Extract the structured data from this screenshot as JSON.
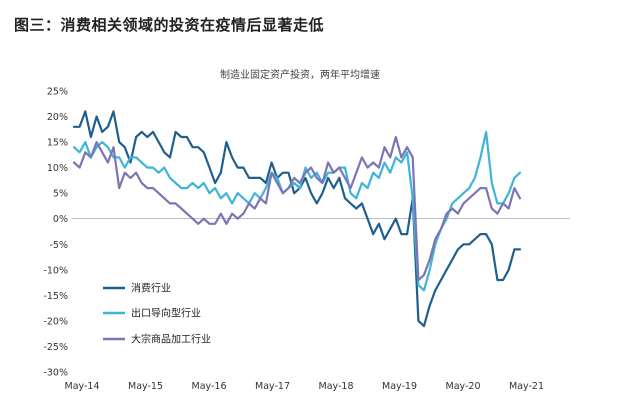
{
  "figure_title": "图三：消费相关领域的投资在疫情后显著走低",
  "chart_data": {
    "type": "line",
    "title": "制造业固定资产投资，两年平均增速",
    "xlabel": "",
    "ylabel": "",
    "ylim": [
      -30,
      25
    ],
    "yticks": [
      "25%",
      "20%",
      "15%",
      "10%",
      "5%",
      "0%",
      "-5%",
      "-10%",
      "-15%",
      "-20%",
      "-25%",
      "-30%"
    ],
    "xticks": [
      "May-14",
      "May-15",
      "May-16",
      "May-17",
      "May-18",
      "May-19",
      "May-20",
      "May-21"
    ],
    "legend_position": "bottom-left",
    "grid": false,
    "series": [
      {
        "name": "消费行业",
        "color": "#1f5f8f",
        "values": [
          [
            0,
            18
          ],
          [
            1,
            18
          ],
          [
            2,
            21
          ],
          [
            3,
            16
          ],
          [
            4,
            20
          ],
          [
            5,
            17
          ],
          [
            6,
            18
          ],
          [
            7,
            21
          ],
          [
            8,
            15
          ],
          [
            9,
            14
          ],
          [
            10,
            11
          ],
          [
            11,
            16
          ],
          [
            12,
            17
          ],
          [
            13,
            16
          ],
          [
            14,
            17
          ],
          [
            15,
            15
          ],
          [
            16,
            13
          ],
          [
            17,
            12
          ],
          [
            18,
            17
          ],
          [
            19,
            16
          ],
          [
            20,
            16
          ],
          [
            21,
            14
          ],
          [
            22,
            14
          ],
          [
            23,
            13
          ],
          [
            24,
            10
          ],
          [
            25,
            7
          ],
          [
            26,
            9
          ],
          [
            27,
            15
          ],
          [
            28,
            12
          ],
          [
            29,
            10
          ],
          [
            30,
            10
          ],
          [
            31,
            8
          ],
          [
            32,
            8
          ],
          [
            33,
            8
          ],
          [
            34,
            7
          ],
          [
            35,
            11
          ],
          [
            36,
            8
          ],
          [
            37,
            9
          ],
          [
            38,
            9
          ],
          [
            39,
            5
          ],
          [
            40,
            6
          ],
          [
            41,
            8
          ],
          [
            42,
            5
          ],
          [
            43,
            3
          ],
          [
            44,
            5
          ],
          [
            45,
            8
          ],
          [
            46,
            6
          ],
          [
            47,
            8
          ],
          [
            48,
            4
          ],
          [
            49,
            3
          ],
          [
            50,
            2
          ],
          [
            51,
            3
          ],
          [
            52,
            0
          ],
          [
            53,
            -3
          ],
          [
            54,
            -1
          ],
          [
            55,
            -4
          ],
          [
            56,
            -2
          ],
          [
            57,
            0
          ],
          [
            58,
            -3
          ],
          [
            59,
            -3
          ],
          [
            60,
            4
          ],
          [
            61,
            -20
          ],
          [
            62,
            -21
          ],
          [
            63,
            -17
          ],
          [
            64,
            -14
          ],
          [
            65,
            -12
          ],
          [
            66,
            -10
          ],
          [
            67,
            -8
          ],
          [
            68,
            -6
          ],
          [
            69,
            -5
          ],
          [
            70,
            -5
          ],
          [
            71,
            -4
          ],
          [
            72,
            -3
          ],
          [
            73,
            -3
          ],
          [
            74,
            -5
          ],
          [
            75,
            -12
          ],
          [
            76,
            -12
          ],
          [
            77,
            -10
          ],
          [
            78,
            -6
          ],
          [
            79,
            -6
          ]
        ]
      },
      {
        "name": "出口导向型行业",
        "color": "#3fb4d6",
        "values": [
          [
            0,
            14
          ],
          [
            1,
            13
          ],
          [
            2,
            15
          ],
          [
            3,
            12
          ],
          [
            4,
            14
          ],
          [
            5,
            15
          ],
          [
            6,
            14
          ],
          [
            7,
            12
          ],
          [
            8,
            12
          ],
          [
            9,
            10
          ],
          [
            10,
            12
          ],
          [
            11,
            12
          ],
          [
            12,
            11
          ],
          [
            13,
            10
          ],
          [
            14,
            10
          ],
          [
            15,
            9
          ],
          [
            16,
            10
          ],
          [
            17,
            8
          ],
          [
            18,
            7
          ],
          [
            19,
            6
          ],
          [
            20,
            6
          ],
          [
            21,
            7
          ],
          [
            22,
            6
          ],
          [
            23,
            7
          ],
          [
            24,
            5
          ],
          [
            25,
            6
          ],
          [
            26,
            4
          ],
          [
            27,
            5
          ],
          [
            28,
            3
          ],
          [
            29,
            5
          ],
          [
            30,
            4
          ],
          [
            31,
            3
          ],
          [
            32,
            5
          ],
          [
            33,
            4
          ],
          [
            34,
            6
          ],
          [
            35,
            9
          ],
          [
            36,
            8
          ],
          [
            37,
            5
          ],
          [
            38,
            6
          ],
          [
            39,
            7
          ],
          [
            40,
            6
          ],
          [
            41,
            10
          ],
          [
            42,
            8
          ],
          [
            43,
            9
          ],
          [
            44,
            7
          ],
          [
            45,
            9
          ],
          [
            46,
            9
          ],
          [
            47,
            10
          ],
          [
            48,
            10
          ],
          [
            49,
            5
          ],
          [
            50,
            4
          ],
          [
            51,
            7
          ],
          [
            52,
            6
          ],
          [
            53,
            9
          ],
          [
            54,
            8
          ],
          [
            55,
            11
          ],
          [
            56,
            9
          ],
          [
            57,
            12
          ],
          [
            58,
            11
          ],
          [
            59,
            13
          ],
          [
            60,
            4
          ],
          [
            61,
            -13
          ],
          [
            62,
            -14
          ],
          [
            63,
            -10
          ],
          [
            64,
            -5
          ],
          [
            65,
            -2
          ],
          [
            66,
            0
          ],
          [
            67,
            3
          ],
          [
            68,
            4
          ],
          [
            69,
            5
          ],
          [
            70,
            6
          ],
          [
            71,
            8
          ],
          [
            72,
            12
          ],
          [
            73,
            17
          ],
          [
            74,
            7
          ],
          [
            75,
            3
          ],
          [
            76,
            3
          ],
          [
            77,
            5
          ],
          [
            78,
            8
          ],
          [
            79,
            9
          ]
        ]
      },
      {
        "name": "大宗商品加工行业",
        "color": "#7c74b4",
        "values": [
          [
            0,
            11
          ],
          [
            1,
            10
          ],
          [
            2,
            13
          ],
          [
            3,
            12
          ],
          [
            4,
            15
          ],
          [
            5,
            13
          ],
          [
            6,
            11
          ],
          [
            7,
            14
          ],
          [
            8,
            6
          ],
          [
            9,
            9
          ],
          [
            10,
            8
          ],
          [
            11,
            9
          ],
          [
            12,
            7
          ],
          [
            13,
            6
          ],
          [
            14,
            6
          ],
          [
            15,
            5
          ],
          [
            16,
            4
          ],
          [
            17,
            3
          ],
          [
            18,
            3
          ],
          [
            19,
            2
          ],
          [
            20,
            1
          ],
          [
            21,
            0
          ],
          [
            22,
            -1
          ],
          [
            23,
            0
          ],
          [
            24,
            -1
          ],
          [
            25,
            -1
          ],
          [
            26,
            1
          ],
          [
            27,
            -1
          ],
          [
            28,
            1
          ],
          [
            29,
            0
          ],
          [
            30,
            1
          ],
          [
            31,
            3
          ],
          [
            32,
            2
          ],
          [
            33,
            4
          ],
          [
            34,
            3
          ],
          [
            35,
            9
          ],
          [
            36,
            7
          ],
          [
            37,
            5
          ],
          [
            38,
            6
          ],
          [
            39,
            8
          ],
          [
            40,
            7
          ],
          [
            41,
            9
          ],
          [
            42,
            10
          ],
          [
            43,
            8
          ],
          [
            44,
            7
          ],
          [
            45,
            11
          ],
          [
            46,
            9
          ],
          [
            47,
            10
          ],
          [
            48,
            8
          ],
          [
            49,
            6
          ],
          [
            50,
            9
          ],
          [
            51,
            12
          ],
          [
            52,
            10
          ],
          [
            53,
            11
          ],
          [
            54,
            10
          ],
          [
            55,
            14
          ],
          [
            56,
            12
          ],
          [
            57,
            16
          ],
          [
            58,
            12
          ],
          [
            59,
            14
          ],
          [
            60,
            12
          ],
          [
            61,
            -12
          ],
          [
            62,
            -11
          ],
          [
            63,
            -8
          ],
          [
            64,
            -4
          ],
          [
            65,
            -2
          ],
          [
            66,
            1
          ],
          [
            67,
            2
          ],
          [
            68,
            1
          ],
          [
            69,
            3
          ],
          [
            70,
            4
          ],
          [
            71,
            5
          ],
          [
            72,
            6
          ],
          [
            73,
            6
          ],
          [
            74,
            2
          ],
          [
            75,
            1
          ],
          [
            76,
            3
          ],
          [
            77,
            2
          ],
          [
            78,
            6
          ],
          [
            79,
            4
          ]
        ]
      }
    ]
  }
}
